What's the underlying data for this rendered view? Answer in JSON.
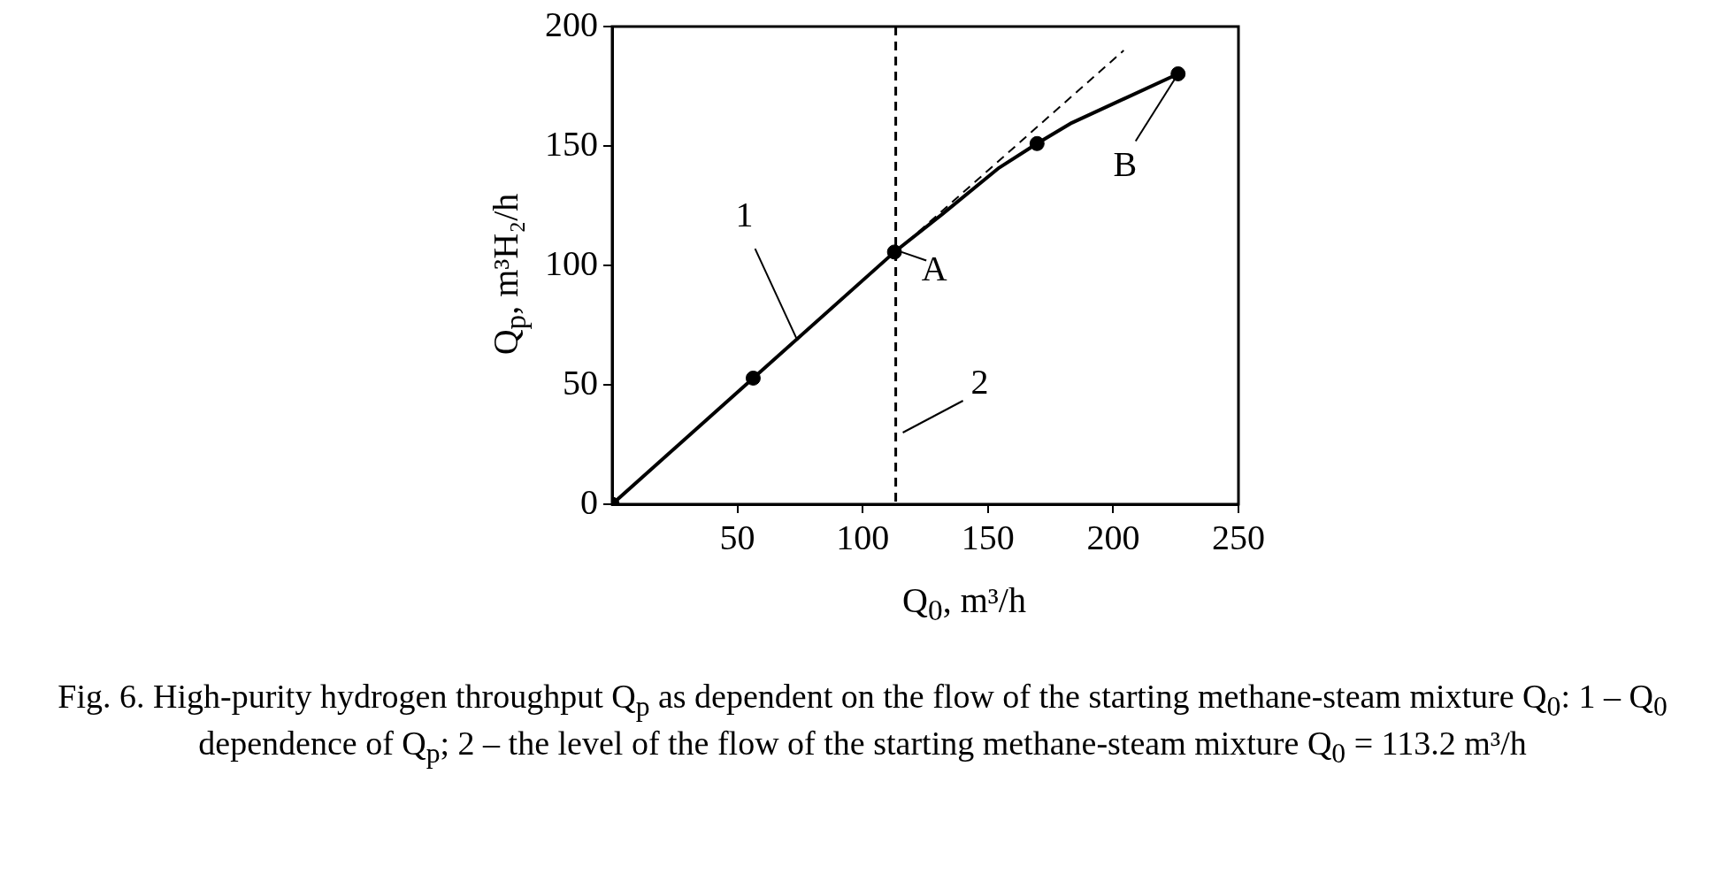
{
  "chart_data": {
    "type": "line",
    "xlabel": "Q$_{0}$, m³/h",
    "ylabel": "Q$_{p}$, m³H₂/h",
    "xlim": [
      0,
      250
    ],
    "xticks": [
      50,
      100,
      150,
      200,
      250
    ],
    "ylim": [
      0,
      200
    ],
    "yticks": [
      0,
      50,
      100,
      150,
      200
    ],
    "grid": false,
    "legend": false,
    "series": [
      {
        "color": "#000000",
        "marker": "none",
        "line_style": "solid",
        "x": [
          0,
          56.3,
          112.7,
          132.1,
          154.5,
          169.6,
          183.5,
          225.9
        ],
        "values": [
          0,
          52.8,
          105.6,
          121.7,
          140.9,
          151,
          159.7,
          180.2
        ]
      },
      {
        "type": "scatter",
        "color": "#000000",
        "marker": "circle",
        "x": [
          0,
          56.3,
          112.7,
          169.6,
          225.9
        ],
        "values": [
          0,
          52.8,
          105.6,
          151,
          180.2
        ]
      },
      {
        "color": "#000000",
        "marker": "none",
        "line_style": "dashed",
        "x": [
          113.2,
          204.2
        ],
        "values": [
          105.6,
          190
        ]
      }
    ],
    "ref_lines": [
      {
        "axis": "x",
        "value": 113.2,
        "line_style": "dashed",
        "color": "#000000"
      }
    ],
    "annotations": [
      {
        "text": "1",
        "x": 74,
        "y": 68.5
      },
      {
        "text": "A",
        "x": 112.7,
        "y": 105.6
      },
      {
        "text": "B",
        "x": 225.9,
        "y": 180.2
      },
      {
        "text": "2",
        "x": 113.2,
        "y": 30
      },
      "Fig. 6. High-purity hydrogen throughput Q$_{p}$ as dependent on the flow of the starting methane-steam mixture Q$_{0}$: 1 – Q$_{0}$ dependence of Q$_{p}$; 2 – the level of the flow of the starting methane-steam mixture Q$_{0}$ = 113.2 m³/h"
    ]
  }
}
